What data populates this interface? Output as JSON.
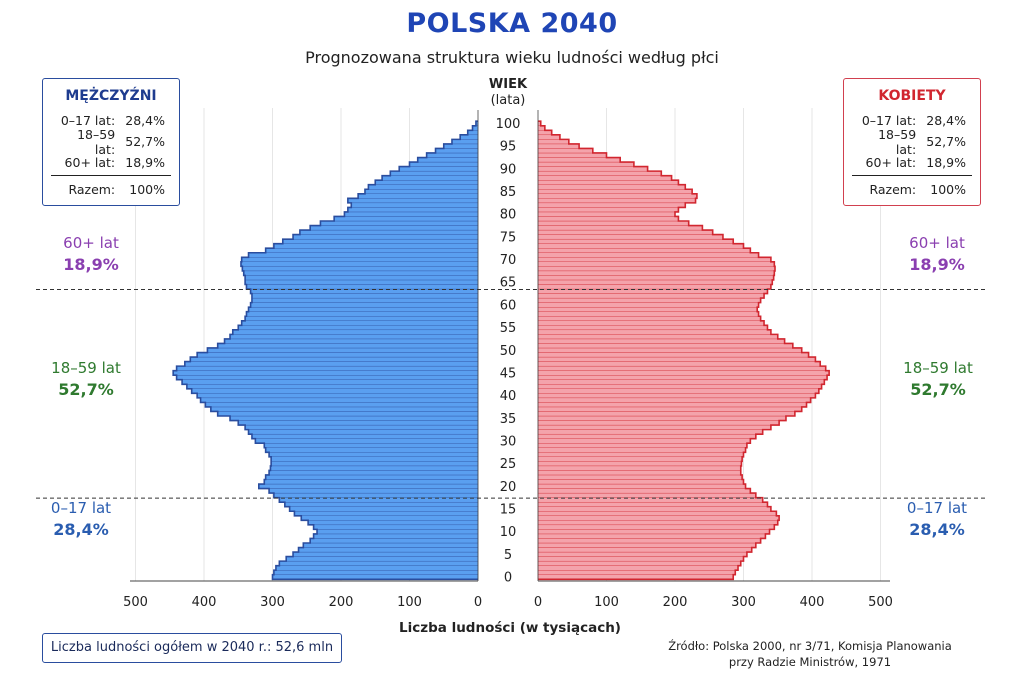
{
  "title": "POLSKA 2040",
  "subtitle": "Prognozowana struktura wieku ludności według płci",
  "age_axis": {
    "title": "WIEK",
    "unit": "(lata)"
  },
  "male_box": {
    "title": "MĘŻCZYŹNI",
    "rows": [
      {
        "label": "0–17 lat:",
        "value": "28,4%"
      },
      {
        "label": "18–59 lat:",
        "value": "52,7%"
      },
      {
        "label": "60+ lat:",
        "value": "18,9%"
      }
    ],
    "total": {
      "label": "Razem:",
      "value": "100%"
    }
  },
  "female_box": {
    "title": "KOBIETY",
    "rows": [
      {
        "label": "0–17 lat:",
        "value": "28,4%"
      },
      {
        "label": "18–59 lat:",
        "value": "52,7%"
      },
      {
        "label": "60+ lat:",
        "value": "18,9%"
      }
    ],
    "total": {
      "label": "Razem:",
      "value": "100%"
    }
  },
  "groups": {
    "left": [
      {
        "label": "60+ lat",
        "pct": "18,9%"
      },
      {
        "label": "18–59 lat",
        "pct": "52,7%"
      },
      {
        "label": "0–17 lat",
        "pct": "28,4%"
      }
    ],
    "right": [
      {
        "label": "60+ lat",
        "pct": "18,9%"
      },
      {
        "label": "18–59 lat",
        "pct": "52,7%"
      },
      {
        "label": "0–17 lat",
        "pct": "28,4%"
      }
    ]
  },
  "xlabel": "Liczba ludności (w tysiącach)",
  "total_note": "Liczba ludności ogółem w 2040 r.: 52,6 mln",
  "source": [
    "Źródło: Polska 2000, nr 3/71, Komisja Planowania",
    "przy Radzie Ministrów, 1971"
  ],
  "colors": {
    "male": "#5a9ff0",
    "male_edge": "#2a4d9e",
    "female": "#f4a3ab",
    "female_edge": "#d1262f"
  },
  "chart_data": {
    "type": "bar",
    "orientation": "horizontal",
    "categories_label": "age",
    "age_ticks": [
      0,
      5,
      10,
      15,
      20,
      25,
      30,
      35,
      40,
      45,
      50,
      55,
      60,
      65,
      70,
      75,
      80,
      85,
      90,
      95,
      100
    ],
    "x_ticks": [
      0,
      100,
      200,
      300,
      400,
      500
    ],
    "xlim": [
      0,
      550
    ],
    "age_range": [
      0,
      100
    ],
    "group_boundaries": [
      17.5,
      63.5
    ],
    "series": [
      {
        "name": "MĘŻCZYŹNI",
        "side": "left",
        "values": [
          300,
          298,
          295,
          290,
          280,
          270,
          262,
          255,
          245,
          240,
          235,
          240,
          248,
          258,
          268,
          275,
          282,
          290,
          298,
          305,
          320,
          312,
          310,
          305,
          303,
          302,
          302,
          305,
          310,
          312,
          325,
          330,
          335,
          340,
          350,
          362,
          380,
          390,
          398,
          405,
          410,
          418,
          425,
          432,
          440,
          445,
          440,
          428,
          420,
          410,
          395,
          380,
          370,
          362,
          358,
          350,
          345,
          340,
          338,
          335,
          332,
          330,
          330,
          332,
          338,
          340,
          340,
          342,
          344,
          346,
          345,
          335,
          310,
          298,
          285,
          270,
          260,
          245,
          230,
          210,
          195,
          190,
          185,
          190,
          175,
          165,
          160,
          150,
          140,
          128,
          115,
          100,
          88,
          75,
          62,
          50,
          38,
          26,
          15,
          8,
          3
        ]
      },
      {
        "name": "KOBIETY",
        "side": "right",
        "values": [
          285,
          288,
          292,
          296,
          300,
          305,
          312,
          318,
          325,
          332,
          338,
          345,
          350,
          352,
          348,
          340,
          335,
          328,
          318,
          310,
          303,
          300,
          298,
          296,
          296,
          297,
          298,
          300,
          303,
          305,
          310,
          318,
          328,
          340,
          352,
          362,
          375,
          385,
          392,
          398,
          405,
          410,
          414,
          418,
          422,
          425,
          420,
          412,
          405,
          395,
          385,
          372,
          360,
          350,
          340,
          335,
          330,
          325,
          322,
          320,
          322,
          325,
          330,
          335,
          340,
          342,
          344,
          345,
          346,
          345,
          340,
          322,
          310,
          300,
          285,
          270,
          255,
          240,
          220,
          205,
          200,
          205,
          215,
          230,
          232,
          225,
          215,
          205,
          195,
          180,
          160,
          140,
          120,
          100,
          80,
          60,
          45,
          32,
          20,
          10,
          4
        ]
      }
    ]
  }
}
